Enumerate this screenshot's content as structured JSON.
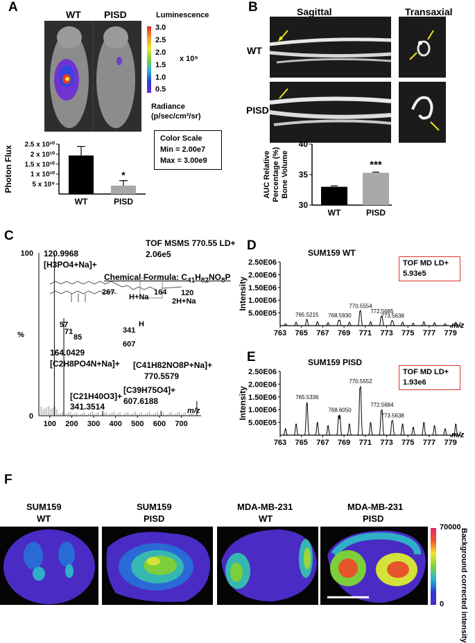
{
  "panels": {
    "A": {
      "label": "A",
      "col_wt": "WT",
      "col_pisd": "PISD",
      "scale_title": "Luminescence",
      "scale_ticks": [
        "3.0",
        "2.5",
        "2.0",
        "1.5",
        "1.0",
        "0.5"
      ],
      "scale_multiplier": "x 10⁹",
      "radiance_line1": "Radiance",
      "radiance_line2": "(p/sec/cm²/sr)",
      "color_scale_title": "Color Scale",
      "color_scale_min": "Min = 2.00e7",
      "color_scale_max": "Max = 3.00e9"
    },
    "B": {
      "label": "B",
      "col_sagittal": "Sagittal",
      "col_transaxial": "Transaxial",
      "row_wt": "WT",
      "row_pisd": "PISD"
    },
    "C": {
      "label": "C",
      "header_line1": "TOF MSMS 770.55 LD+",
      "header_line2": "2.06e5",
      "formula_prefix": "Chemical Formula: C",
      "formula_html_note": "C41H82NO8P",
      "y_top": "100",
      "y_bottom": "0",
      "y_unit": "%",
      "x_unit": "m/z",
      "peak1_mass": "120.9968",
      "peak1_ion": "[H3PO4+Na]+",
      "peak2_mass": "164.0429",
      "peak2_ion": "[C2H8PO4N+Na]+",
      "peak3_ion": "[C21H40O3]+",
      "peak3_mass": "341.3514",
      "peak4_ion": "[C39H75O4]+",
      "peak4_mass": "607.6188",
      "peak5_ion": "[C41H82NO8P+Na]+",
      "peak5_mass": "770.5579",
      "frag_267": "267",
      "frag_hna": "H+Na",
      "frag_164": "164",
      "frag_120": "120",
      "frag_2hna": "2H+Na",
      "frag_57": "57",
      "frag_71": "71",
      "frag_85": "85",
      "frag_h": "H",
      "frag_341": "341",
      "frag_607": "607"
    },
    "D": {
      "label": "D",
      "title": "SUM159 WT",
      "box_line1": "TOF MD LD+",
      "box_line2": "5.93e5"
    },
    "E": {
      "label": "E",
      "title": "SUM159 PISD",
      "box_line1": "TOF MD LD+",
      "box_line2": "1.93e6"
    },
    "F": {
      "label": "F",
      "titles": [
        {
          "line1": "SUM159",
          "line2": "WT"
        },
        {
          "line1": "SUM159",
          "line2": "PISD"
        },
        {
          "line1": "MDA-MB-231",
          "line2": "WT"
        },
        {
          "line1": "MDA-MB-231",
          "line2": "PISD"
        }
      ],
      "scale_max": "70000",
      "scale_min": "0",
      "scale_label": "Background corrected intensity"
    }
  },
  "chart_data": [
    {
      "panel": "A",
      "type": "bar",
      "categories": [
        "WT",
        "PISD"
      ],
      "values": [
        19300000000.0,
        4200000000.0
      ],
      "errors": [
        4500000000.0,
        2500000000.0
      ],
      "ylabel": "Photon Flux",
      "yticks": [
        "5 x 10⁹",
        "1 x 10¹⁰",
        "1.5 x 10¹⁰",
        "2 x 10¹⁰",
        "2.5 x 10¹⁰"
      ],
      "ytick_values": [
        5000000000.0,
        10000000000.0,
        15000000000.0,
        20000000000.0,
        25000000000.0
      ],
      "ylim": [
        0,
        25000000000.0
      ],
      "annotations": [
        {
          "category": "PISD",
          "text": "*"
        }
      ],
      "colors": [
        "#000000",
        "#a8a8a8"
      ]
    },
    {
      "panel": "B",
      "type": "bar",
      "categories": [
        "WT",
        "PISD"
      ],
      "values": [
        33.0,
        35.3
      ],
      "errors": [
        0.15,
        0.1
      ],
      "ylabel": "AUC Relative Percentage (%) Bone Volume",
      "yticks": [
        "30",
        "35",
        "40"
      ],
      "ytick_values": [
        30,
        35,
        40
      ],
      "ylim": [
        30,
        40
      ],
      "annotations": [
        {
          "category": "PISD",
          "text": "***"
        }
      ],
      "colors": [
        "#000000",
        "#a8a8a8"
      ]
    },
    {
      "panel": "C",
      "type": "bar",
      "xlabel": "m/z",
      "ylabel": "%",
      "xticks": [
        100,
        200,
        300,
        400,
        500,
        600,
        700
      ],
      "xlim": [
        50,
        790
      ],
      "ylim": [
        0,
        100
      ],
      "peaks": [
        {
          "mz": 120.9968,
          "rel": 100
        },
        {
          "mz": 164.0429,
          "rel": 60
        },
        {
          "mz": 341.3514,
          "rel": 3
        },
        {
          "mz": 607.6188,
          "rel": 3
        },
        {
          "mz": 770.5579,
          "rel": 9
        }
      ]
    },
    {
      "panel": "D",
      "type": "line",
      "xlabel": "m/z",
      "ylabel": "Intensity",
      "xticks": [
        763,
        765,
        767,
        769,
        771,
        773,
        775,
        777,
        779
      ],
      "yticks": [
        "5.00E05",
        "1.00E06",
        "1.50E06",
        "2.00E06",
        "2.50E06"
      ],
      "ytick_values": [
        500000,
        1000000,
        1500000,
        2000000,
        2500000
      ],
      "xlim": [
        763,
        780
      ],
      "ylim": [
        0,
        2500000
      ],
      "peaks": [
        {
          "mz": 765.5215,
          "intensity": 250000
        },
        {
          "mz": 768.593,
          "intensity": 220000
        },
        {
          "mz": 770.5554,
          "intensity": 590000
        },
        {
          "mz": 772.5685,
          "intensity": 380000
        },
        {
          "mz": 773.5638,
          "intensity": 200000
        }
      ],
      "peak_labels": [
        "765.5215",
        "768.5930",
        "770.5554",
        "772.5685",
        "773.5638"
      ]
    },
    {
      "panel": "E",
      "type": "line",
      "xlabel": "m/z",
      "ylabel": "Intensity",
      "xticks": [
        763,
        765,
        767,
        769,
        771,
        773,
        775,
        777,
        779
      ],
      "yticks": [
        "5.00E05",
        "1.00E06",
        "1.50E06",
        "2.00E06",
        "2.50E06"
      ],
      "ytick_values": [
        500000,
        1000000,
        1500000,
        2000000,
        2500000
      ],
      "xlim": [
        763,
        780
      ],
      "ylim": [
        0,
        2500000
      ],
      "peaks": [
        {
          "mz": 765.5336,
          "intensity": 1300000
        },
        {
          "mz": 768.605,
          "intensity": 800000
        },
        {
          "mz": 770.5552,
          "intensity": 1930000
        },
        {
          "mz": 772.5684,
          "intensity": 1000000
        },
        {
          "mz": 773.5638,
          "intensity": 580000
        }
      ],
      "peak_labels": [
        "765.5336",
        "768.6050",
        "770.5552",
        "772.5684",
        "773.5638"
      ]
    }
  ]
}
